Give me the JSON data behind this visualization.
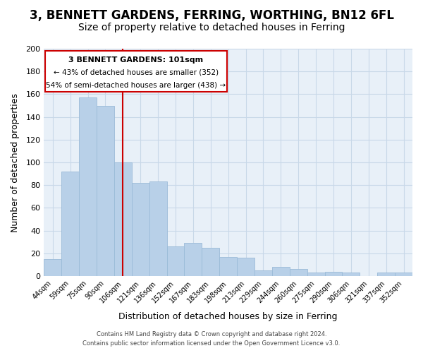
{
  "title": "3, BENNETT GARDENS, FERRING, WORTHING, BN12 6FL",
  "subtitle": "Size of property relative to detached houses in Ferring",
  "xlabel": "Distribution of detached houses by size in Ferring",
  "ylabel": "Number of detached properties",
  "bar_labels": [
    "44sqm",
    "59sqm",
    "75sqm",
    "90sqm",
    "106sqm",
    "121sqm",
    "136sqm",
    "152sqm",
    "167sqm",
    "183sqm",
    "198sqm",
    "213sqm",
    "229sqm",
    "244sqm",
    "260sqm",
    "275sqm",
    "290sqm",
    "306sqm",
    "321sqm",
    "337sqm",
    "352sqm"
  ],
  "bar_values": [
    15,
    92,
    157,
    150,
    100,
    82,
    83,
    26,
    29,
    25,
    17,
    16,
    5,
    8,
    6,
    3,
    4,
    3,
    0,
    3,
    3
  ],
  "bar_color": "#b8d0e8",
  "bar_edge_color": "#9bbbd8",
  "vline_x": 4,
  "vline_color": "#cc0000",
  "ylim": [
    0,
    200
  ],
  "yticks": [
    0,
    20,
    40,
    60,
    80,
    100,
    120,
    140,
    160,
    180,
    200
  ],
  "annotation_title": "3 BENNETT GARDENS: 101sqm",
  "annotation_line1": "← 43% of detached houses are smaller (352)",
  "annotation_line2": "54% of semi-detached houses are larger (438) →",
  "annotation_box_color": "#ffffff",
  "annotation_box_edge": "#cc0000",
  "footer1": "Contains HM Land Registry data © Crown copyright and database right 2024.",
  "footer2": "Contains public sector information licensed under the Open Government Licence v3.0.",
  "background_color": "#ffffff",
  "grid_color": "#c8d8e8",
  "title_fontsize": 12,
  "subtitle_fontsize": 10
}
